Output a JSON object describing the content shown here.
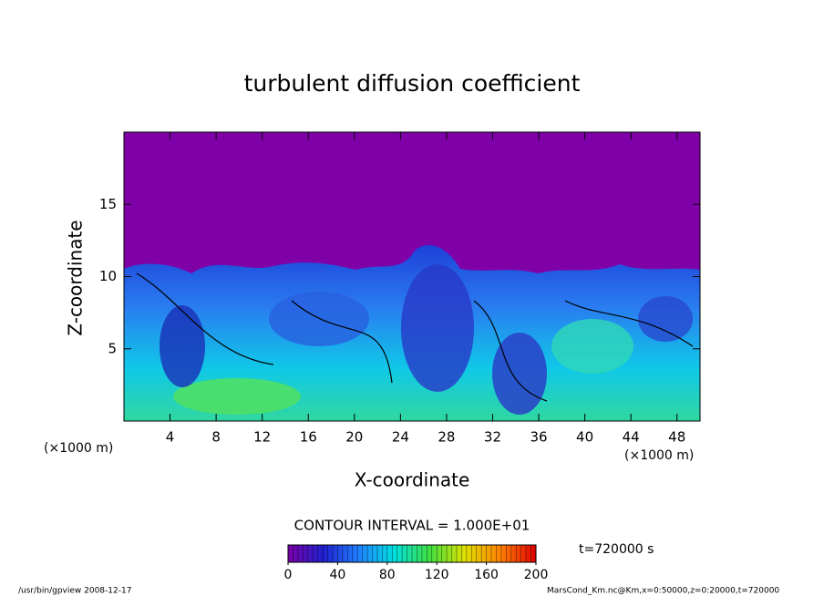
{
  "chart_data": {
    "type": "contour",
    "title": "turbulent diffusion coefficient",
    "xlabel": "X-coordinate",
    "ylabel": "Z-coordinate",
    "xunit": "(×1000 m)",
    "yunit": "(×1000 m)",
    "xlim": [
      0,
      50
    ],
    "xticks": [
      4,
      8,
      12,
      16,
      20,
      24,
      28,
      32,
      36,
      40,
      44,
      48
    ],
    "ylim": [
      0,
      20
    ],
    "yticks": [
      5,
      10,
      15
    ],
    "contour_interval": "CONTOUR INTERVAL = 1.000E+01",
    "time_label": "t=720000 s",
    "colorbar": {
      "lim": [
        0,
        200
      ],
      "ticks": [
        0,
        40,
        80,
        120,
        160,
        200
      ],
      "colormap": [
        "#7a00a8",
        "#2020d0",
        "#2080ff",
        "#00e0e0",
        "#40e040",
        "#e0e000",
        "#ff8000",
        "#e00000"
      ]
    },
    "footer_left": "/usr/bin/gpview  2008-12-17",
    "footer_right": "MarsCond_Km.nc@Km,x=0:50000,z=0:20000,t=720000"
  }
}
